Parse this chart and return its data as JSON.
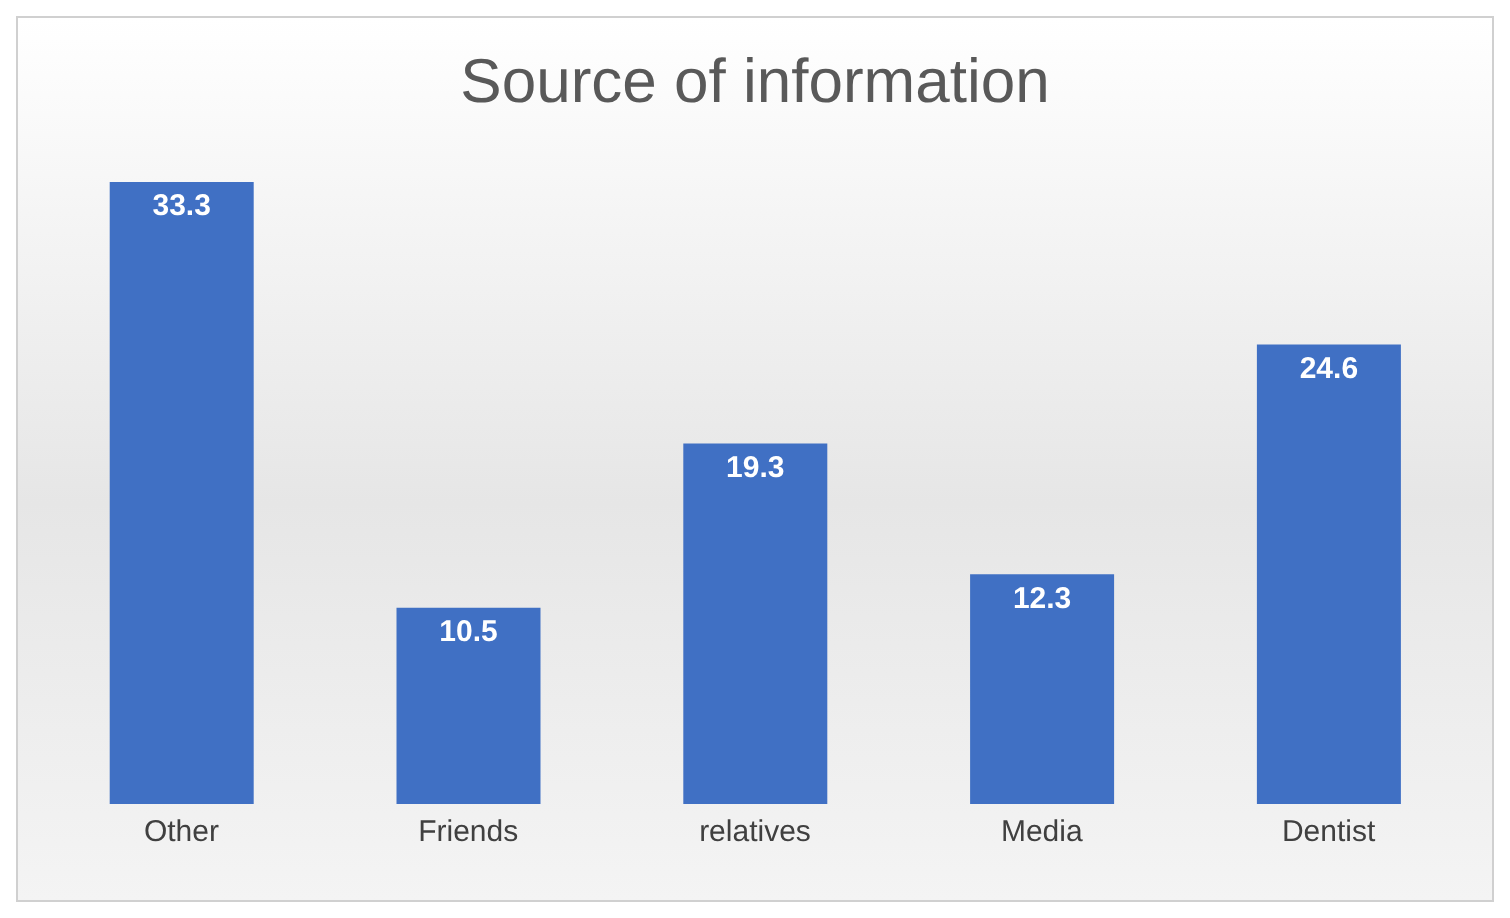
{
  "chart_data": {
    "type": "bar",
    "title": "Source of information",
    "categories": [
      "Other",
      "Friends",
      "relatives",
      "Media",
      "Dentist"
    ],
    "values": [
      33.3,
      10.5,
      19.3,
      12.3,
      24.6
    ],
    "color": "#4070c4",
    "data_labels": true
  }
}
